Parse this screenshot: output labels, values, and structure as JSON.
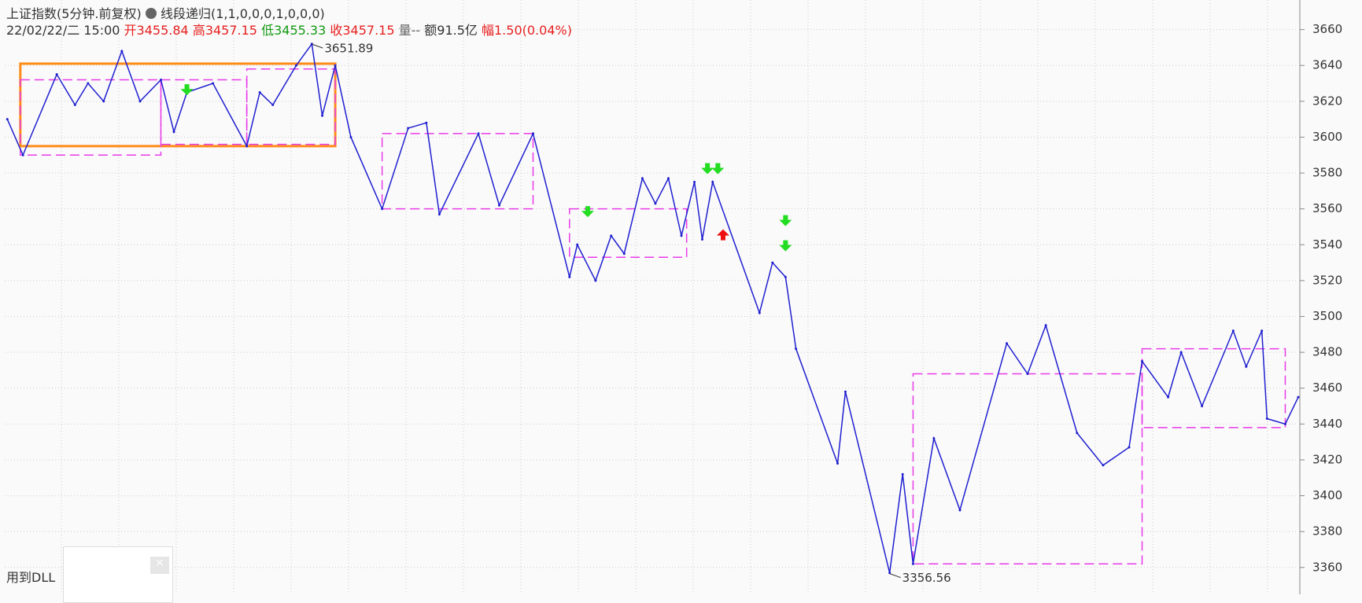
{
  "header": {
    "title": "上证指数(5分钟.前复权)",
    "indicator": "线段递归(1,1,0,0,0,1,0,0,0)",
    "date": "22/02/22/二 15:00",
    "open": "开3455.84",
    "high": "高3457.15",
    "low": "低3455.33",
    "close": "收3457.15",
    "volume": "量--",
    "amount": "额91.5亿",
    "change": "幅1.50(0.04%)"
  },
  "footer": {
    "dll": "用到DLL"
  },
  "chart_data": {
    "type": "line",
    "x": [
      1,
      7,
      20,
      27,
      32,
      38,
      45,
      52,
      60,
      65,
      70,
      80,
      93,
      98,
      103,
      112,
      118,
      122,
      127,
      133,
      145,
      155,
      162,
      167,
      182,
      190,
      203,
      217,
      220,
      227,
      233,
      238,
      245,
      250,
      255,
      260,
      265,
      268,
      272,
      290,
      295,
      300,
      304,
      320,
      323,
      340,
      345,
      349,
      357,
      367,
      385,
      393,
      400,
      412,
      422,
      432,
      437,
      447,
      452,
      460,
      472,
      477,
      483,
      485,
      492,
      497
    ],
    "series": [
      {
        "color": "#1f1fd0",
        "values": [
          3610,
          3590,
          3635,
          3618,
          3630,
          3620,
          3648,
          3620,
          3632,
          3603,
          3625,
          3630,
          3595,
          3625,
          3618,
          3640,
          3652,
          3612,
          3640,
          3600,
          3560,
          3605,
          3608,
          3557,
          3602,
          3562,
          3602,
          3522,
          3540,
          3520,
          3545,
          3535,
          3577,
          3563,
          3577,
          3545,
          3575,
          3543,
          3575,
          3502,
          3530,
          3522,
          3482,
          3418,
          3458,
          3357,
          3412,
          3362,
          3432,
          3392,
          3485,
          3468,
          3495,
          3435,
          3417,
          3427,
          3475,
          3455,
          3480,
          3450,
          3492,
          3472,
          3492,
          3443,
          3440,
          3455
        ]
      }
    ],
    "zones": [
      {
        "x0": 6,
        "x1": 127,
        "low": 3595,
        "high": 3641,
        "color": "#ff8c1a",
        "dashed": false
      },
      {
        "x0": 6,
        "x1": 60,
        "low": 3590,
        "high": 3632,
        "color": "#e83be8",
        "dashed": true
      },
      {
        "x0": 60,
        "x1": 93,
        "low": 3596,
        "high": 3632,
        "color": "#e83be8",
        "dashed": true
      },
      {
        "x0": 93,
        "x1": 127,
        "low": 3596,
        "high": 3638,
        "color": "#e83be8",
        "dashed": true
      },
      {
        "x0": 145,
        "x1": 203,
        "low": 3560,
        "high": 3602,
        "color": "#e83be8",
        "dashed": true
      },
      {
        "x0": 217,
        "x1": 262,
        "low": 3533,
        "high": 3560,
        "color": "#e83be8",
        "dashed": true
      },
      {
        "x0": 349,
        "x1": 437,
        "low": 3362,
        "high": 3468,
        "color": "#e83be8",
        "dashed": true
      },
      {
        "x0": 437,
        "x1": 492,
        "low": 3438,
        "high": 3482,
        "color": "#e83be8",
        "dashed": true
      }
    ],
    "sell_signals": {
      "x": [
        70,
        224,
        270,
        274,
        300,
        300
      ],
      "y": [
        3626,
        3558,
        3582,
        3582,
        3553,
        3539
      ],
      "color": "#22dd22"
    },
    "buy_signals": {
      "x": [
        276
      ],
      "y": [
        3546
      ],
      "color": "#ee1111"
    },
    "annotations": [
      {
        "label": "3651.89",
        "x": 118,
        "y": 3651.89
      },
      {
        "label": "3356.56",
        "x": 340,
        "y": 3356.56
      }
    ],
    "xlim": [
      0,
      497
    ],
    "ylim": [
      3345,
      3676.5
    ],
    "yticks": [
      3360,
      3380,
      3400,
      3420,
      3440,
      3460,
      3480,
      3500,
      3520,
      3540,
      3560,
      3580,
      3600,
      3620,
      3640,
      3660
    ],
    "grid": true
  }
}
